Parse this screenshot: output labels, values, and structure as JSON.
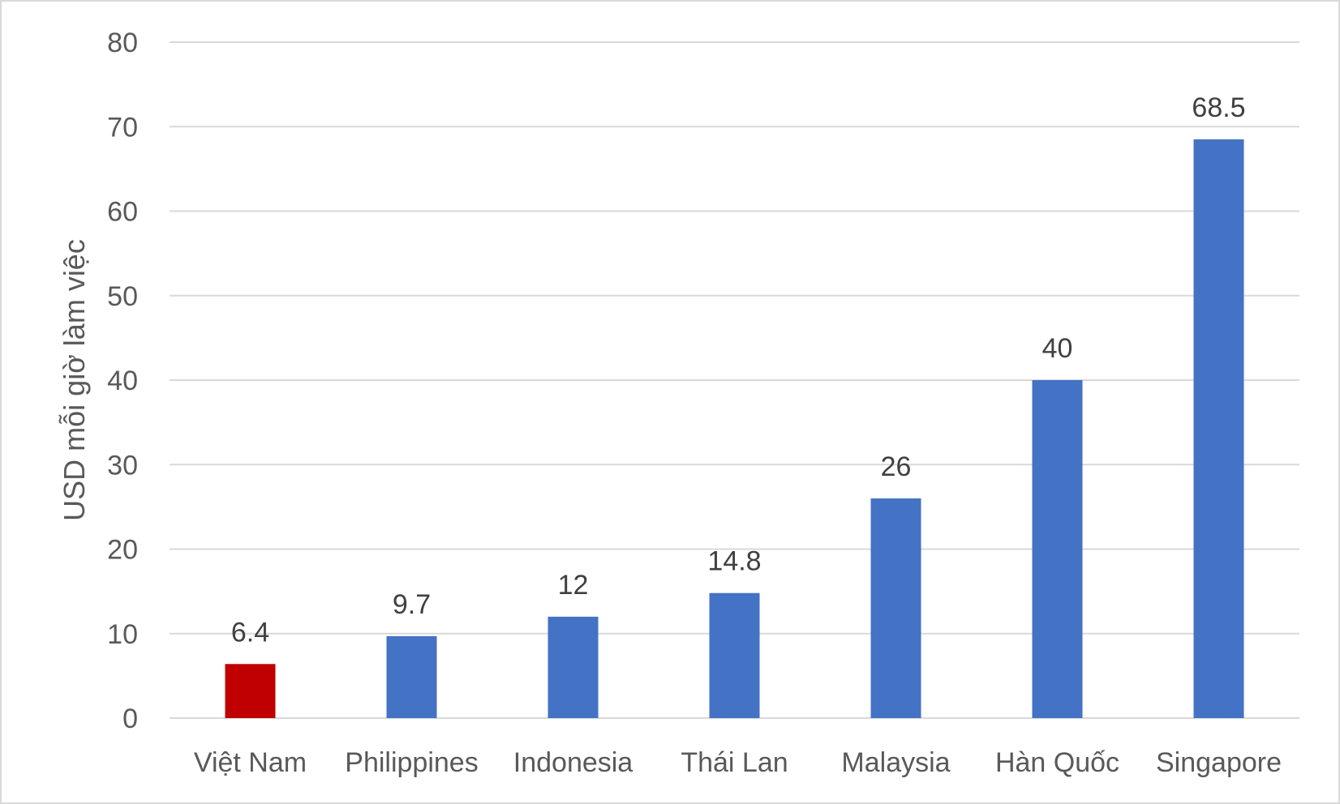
{
  "chart_data": {
    "type": "bar",
    "title": "",
    "xlabel": "",
    "ylabel": "USD mỗi giờ làm việc",
    "ylim": [
      0,
      80
    ],
    "yticks": [
      0,
      10,
      20,
      30,
      40,
      50,
      60,
      70,
      80
    ],
    "grid": true,
    "legend": "none",
    "categories": [
      "Việt Nam",
      "Philippines",
      "Indonesia",
      "Thái Lan",
      "Malaysia",
      "Hàn Quốc",
      "Singapore"
    ],
    "values": [
      6.4,
      9.7,
      12,
      14.8,
      26,
      40,
      68.5
    ],
    "data_labels": [
      "6.4",
      "9.7",
      "12",
      "14.8",
      "26",
      "40",
      "68.5"
    ],
    "colors": [
      "#c00000",
      "#4472c4",
      "#4472c4",
      "#4472c4",
      "#4472c4",
      "#4472c4",
      "#4472c4"
    ]
  }
}
